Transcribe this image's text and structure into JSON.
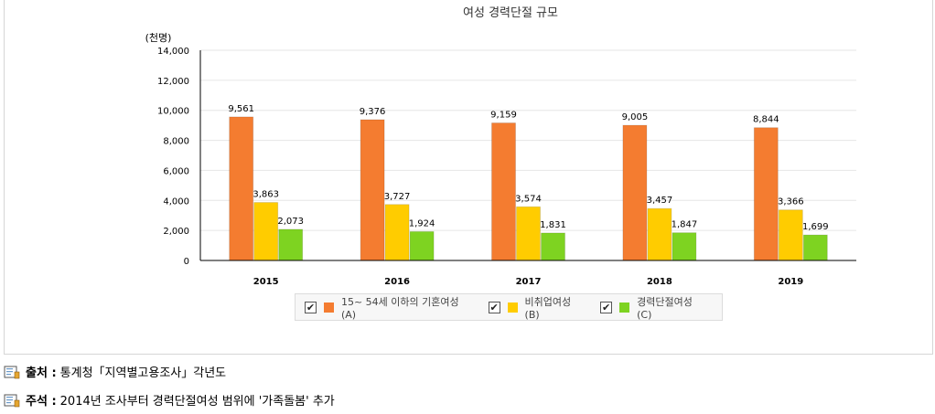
{
  "chart_data": {
    "type": "bar",
    "title": "여성 경력단절 규모",
    "unit_label": "(천명)",
    "categories": [
      "2015",
      "2016",
      "2017",
      "2018",
      "2019"
    ],
    "series": [
      {
        "name": "15~ 54세 이하의 기혼여성(A)",
        "color": "#f47c30",
        "values": [
          9561,
          9376,
          9159,
          9005,
          8844
        ],
        "labels": [
          "9,561",
          "9,376",
          "9,159",
          "9,005",
          "8,844"
        ]
      },
      {
        "name": "비취업여성(B)",
        "color": "#ffcc00",
        "values": [
          3863,
          3727,
          3574,
          3457,
          3366
        ],
        "labels": [
          "3,863",
          "3,727",
          "3,574",
          "3,457",
          "3,366"
        ]
      },
      {
        "name": "경력단절여성(C)",
        "color": "#7ed321",
        "values": [
          2073,
          1924,
          1831,
          1847,
          1699
        ],
        "labels": [
          "2,073",
          "1,924",
          "1,831",
          "1,847",
          "1,699"
        ]
      }
    ],
    "ylim": [
      0,
      14000
    ],
    "yticks": [
      0,
      2000,
      4000,
      6000,
      8000,
      10000,
      12000,
      14000
    ],
    "ytick_labels": [
      "0",
      "2,000",
      "4,000",
      "6,000",
      "8,000",
      "10,000",
      "12,000",
      "14,000"
    ],
    "grid": true,
    "legend_position": "bottom"
  },
  "legend": {
    "items": [
      {
        "label": "15~ 54세 이하의 기혼여성(A)",
        "color": "#f47c30",
        "checked": true
      },
      {
        "label": "비취업여성(B)",
        "color": "#ffcc00",
        "checked": true
      },
      {
        "label": "경력단절여성(C)",
        "color": "#7ed321",
        "checked": true
      }
    ]
  },
  "notes": {
    "source_key": "출처 :",
    "source_text": "통계청「지역별고용조사」각년도",
    "remark_key": "주석 :",
    "remark_text": "2014년 조사부터 경력단절여성 범위에 '가족돌봄' 추가"
  },
  "icons": {
    "check": "✔",
    "note_icon": "book-icon"
  }
}
